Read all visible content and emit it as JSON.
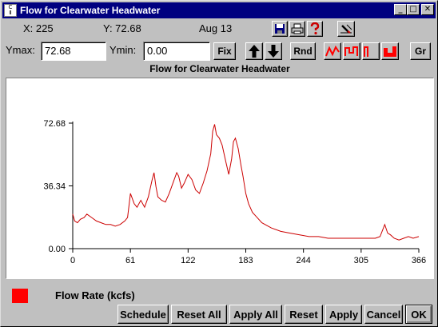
{
  "window": {
    "app_icon_text": "C\nⅡ",
    "title": "Flow for Clearwater Headwater",
    "minimize": "_",
    "maximize": "□",
    "close": "✕"
  },
  "status": {
    "x_readout": "X: 225",
    "y_readout": "Y: 72.68",
    "date": "Aug 13"
  },
  "toolbar_icons": [
    "save-icon",
    "print-icon",
    "help-icon",
    "pen-edit-icon"
  ],
  "controls": {
    "ymax_label": "Ymax:",
    "ymax_value": "72.68",
    "ymin_label": "Ymin:",
    "ymin_value": "0.00",
    "fix_label": "Fix",
    "rnd_label": "Rnd",
    "gr_label": "Gr"
  },
  "plot_type_icons": [
    "line-plot-icon",
    "step-plot-icon",
    "bar-plot-icon",
    "filled-plot-icon"
  ],
  "chart_data": {
    "type": "line",
    "title": "Flow for Clearwater Headwater",
    "xlabel": "",
    "ylabel": "",
    "xlim": [
      0,
      366
    ],
    "ylim": [
      0,
      72.68
    ],
    "x_ticks": [
      "0",
      "61",
      "122",
      "183",
      "244",
      "305",
      "366"
    ],
    "y_ticks": [
      "0.00",
      "36.34",
      "72.68"
    ],
    "grid": false,
    "series": [
      {
        "name": "Flow Rate (kcfs)",
        "color": "#cc0000",
        "x": [
          0,
          2,
          5,
          8,
          12,
          15,
          20,
          25,
          30,
          35,
          40,
          45,
          50,
          55,
          58,
          61,
          65,
          68,
          72,
          76,
          80,
          84,
          86,
          88,
          90,
          94,
          98,
          102,
          106,
          110,
          112,
          115,
          118,
          122,
          126,
          130,
          134,
          138,
          142,
          146,
          148,
          150,
          152,
          155,
          158,
          162,
          165,
          168,
          170,
          172,
          175,
          178,
          180,
          183,
          186,
          190,
          195,
          200,
          210,
          220,
          230,
          240,
          250,
          260,
          270,
          280,
          290,
          300,
          310,
          320,
          325,
          330,
          333,
          336,
          340,
          345,
          350,
          355,
          360,
          366
        ],
        "y": [
          20,
          16,
          15,
          17,
          18,
          20,
          18,
          16,
          15,
          14,
          14,
          13,
          14,
          16,
          18,
          32,
          26,
          24,
          28,
          24,
          30,
          40,
          44,
          36,
          30,
          28,
          27,
          32,
          38,
          44,
          42,
          35,
          38,
          43,
          40,
          34,
          32,
          38,
          45,
          55,
          68,
          72,
          66,
          64,
          60,
          50,
          43,
          52,
          62,
          64,
          58,
          48,
          42,
          32,
          26,
          21,
          18,
          15,
          12,
          10,
          9,
          8,
          7,
          7,
          6,
          6,
          6,
          6,
          6,
          6,
          7,
          14,
          9,
          8,
          6,
          5,
          6,
          7,
          6,
          7
        ]
      }
    ],
    "legend": "bottom-left"
  },
  "legend": {
    "label": "Flow Rate (kcfs)",
    "color": "#ff0000"
  },
  "bottom_buttons": {
    "schedule": "Schedule",
    "reset_all": "Reset All",
    "apply_all": "Apply All",
    "reset": "Reset",
    "apply": "Apply",
    "cancel": "Cancel",
    "ok": "OK"
  }
}
